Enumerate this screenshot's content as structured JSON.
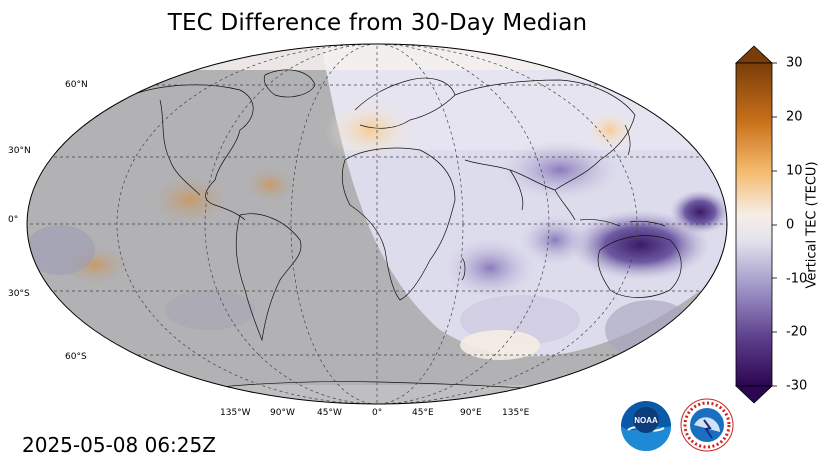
{
  "title": "TEC Difference from 30-Day Median",
  "timestamp": "2025-05-08 06:25Z",
  "lat_labels": [
    "60°N",
    "30°N",
    "0°",
    "30°S",
    "60°S"
  ],
  "lon_labels": [
    "135°W",
    "90°W",
    "45°W",
    "0°",
    "45°E",
    "90°E",
    "135°E"
  ],
  "colorbar": {
    "label": "Vertical TEC (TECU)",
    "ticks": [
      "30",
      "20",
      "10",
      "0",
      "-10",
      "-20",
      "-30"
    ],
    "colors": {
      "max": "#7a3d0a",
      "high": "#d8801c",
      "mid_high": "#fbd4a0",
      "zero": "#f4f2f0",
      "mid_low": "#bdb7da",
      "low": "#6a549a",
      "min": "#2e0a52"
    }
  },
  "logos": {
    "noaa": "NOAA",
    "nws": "NATIONAL WEATHER SERVICE"
  }
}
